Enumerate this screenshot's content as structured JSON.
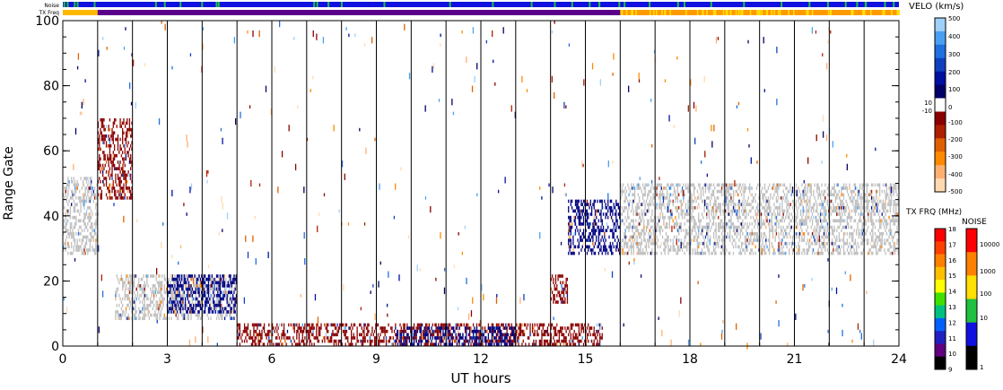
{
  "chart_data": {
    "type": "heatmap",
    "title": "",
    "xlabel": "UT hours",
    "ylabel": "Range Gate",
    "xlim": [
      0,
      24
    ],
    "ylim": [
      0,
      100
    ],
    "x_ticks": [
      "0",
      "3",
      "6",
      "9",
      "12",
      "15",
      "18",
      "21",
      "24"
    ],
    "y_ticks": [
      "0",
      "20",
      "40",
      "60",
      "80",
      "100"
    ],
    "scan_boundaries_ut": [
      1.0,
      2.0,
      3.0,
      4.0,
      5.0,
      6.0,
      7.0,
      8.0,
      9.0,
      10.0,
      11.0,
      12.0,
      13.0,
      14.0,
      15.0,
      16.0,
      17.0,
      18.0,
      19.0,
      20.0,
      21.0,
      22.0,
      23.0
    ],
    "strip_labels": {
      "noise": "Noise",
      "tx_freq": "TX Freq"
    },
    "velocity_scale": {
      "title": "VELO (km/s)",
      "ticks": [
        "500",
        "400",
        "300",
        "200",
        "100",
        "0",
        "-100",
        "-200",
        "-300",
        "-400",
        "-500"
      ],
      "small_ticks": [
        "10",
        "-10"
      ],
      "colors": [
        "#ffd9b0",
        "#ffb070",
        "#ff8a00",
        "#e06000",
        "#b02000",
        "#8b0000",
        "#ffffff",
        "#000066",
        "#0010a0",
        "#1040c0",
        "#2070e0",
        "#4aa0f0",
        "#9fd0f8"
      ]
    },
    "tx_freq_scale": {
      "title": "TX FRQ (MHz)",
      "ticks": [
        "18",
        "17",
        "16",
        "15",
        "14",
        "13",
        "12",
        "11",
        "10",
        "9"
      ]
    },
    "noise_scale": {
      "title": "NOISE",
      "ticks": [
        "10000",
        "1000",
        "100",
        "10",
        "1"
      ]
    },
    "series": [
      {
        "color": "#8b0000",
        "regions": [
          [
            1.0,
            2.0,
            45,
            70
          ],
          [
            14.0,
            14.5,
            13,
            22
          ],
          [
            5.0,
            15.5,
            0,
            7
          ]
        ]
      },
      {
        "color": "#bfbfbf",
        "regions": [
          [
            0.0,
            1.0,
            28,
            52
          ],
          [
            1.5,
            5.0,
            8,
            22
          ],
          [
            16.0,
            24.0,
            28,
            50
          ]
        ]
      },
      {
        "color": "#000080",
        "regions": [
          [
            3.0,
            5.0,
            10,
            22
          ],
          [
            14.5,
            16.0,
            28,
            45
          ],
          [
            9.5,
            13.0,
            0,
            6
          ]
        ]
      }
    ],
    "grid": false,
    "legend": "right"
  }
}
